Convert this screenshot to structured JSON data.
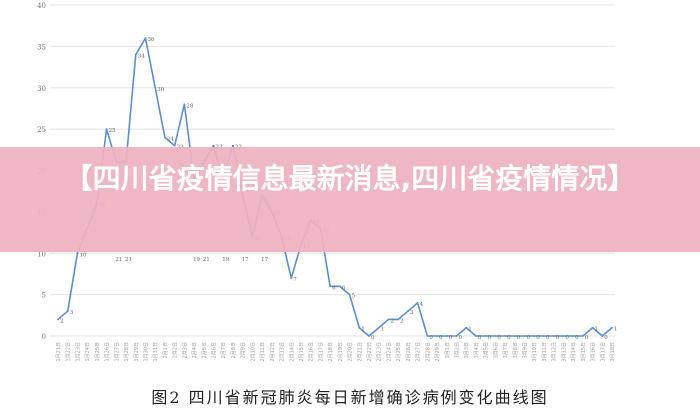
{
  "chart_data": {
    "type": "line",
    "title": "",
    "xlabel": "",
    "ylabel": "",
    "ylim": [
      0,
      40
    ],
    "yticks": [
      0,
      5,
      10,
      15,
      20,
      25,
      30,
      35,
      40
    ],
    "grid": true,
    "line_color": "#5b8fd1",
    "categories": [
      "1月21日",
      "1月22日",
      "1月23日",
      "1月24日",
      "1月25日",
      "1月26日",
      "1月27日",
      "1月28日",
      "1月29日",
      "1月30日",
      "1月31日",
      "2月1日",
      "2月2日",
      "2月3日",
      "2月4日",
      "2月5日",
      "2月6日",
      "2月7日",
      "2月8日",
      "2月9日",
      "2月10日",
      "2月11日",
      "2月12日",
      "2月13日",
      "2月14日",
      "2月15日",
      "2月16日",
      "2月17日",
      "2月18日",
      "2月19日",
      "2月20日",
      "2月21日",
      "2月22日",
      "2月23日",
      "2月24日",
      "2月25日",
      "2月26日",
      "2月27日",
      "2月28日",
      "2月29日",
      "3月1日",
      "3月2日",
      "3月3日",
      "3月4日",
      "3月5日",
      "3月6日",
      "3月7日",
      "3月8日",
      "3月9日",
      "3月10日",
      "3月11日",
      "3月12日",
      "3月13日",
      "3月14日",
      "3月15日",
      "3月16日",
      "3月17日",
      "3月18日"
    ],
    "values": [
      2,
      3,
      10,
      13,
      16,
      25,
      21,
      21,
      34,
      36,
      30,
      24,
      23,
      28,
      19,
      21,
      23,
      19,
      23,
      17,
      12,
      17,
      15,
      12,
      7,
      11,
      14,
      13,
      6,
      6,
      5,
      1,
      0,
      1,
      2,
      2,
      3,
      4,
      0,
      0,
      0,
      0,
      1,
      0,
      0,
      0,
      0,
      0,
      0,
      0,
      0,
      0,
      0,
      0,
      0,
      1,
      0,
      1
    ]
  },
  "caption": "图2  四川省新冠肺炎每日新增确诊病例变化曲线图",
  "banner": {
    "title": "【四川省疫情信息最新消息,四川省疫情情况】",
    "background": "#eeb2c0"
  }
}
